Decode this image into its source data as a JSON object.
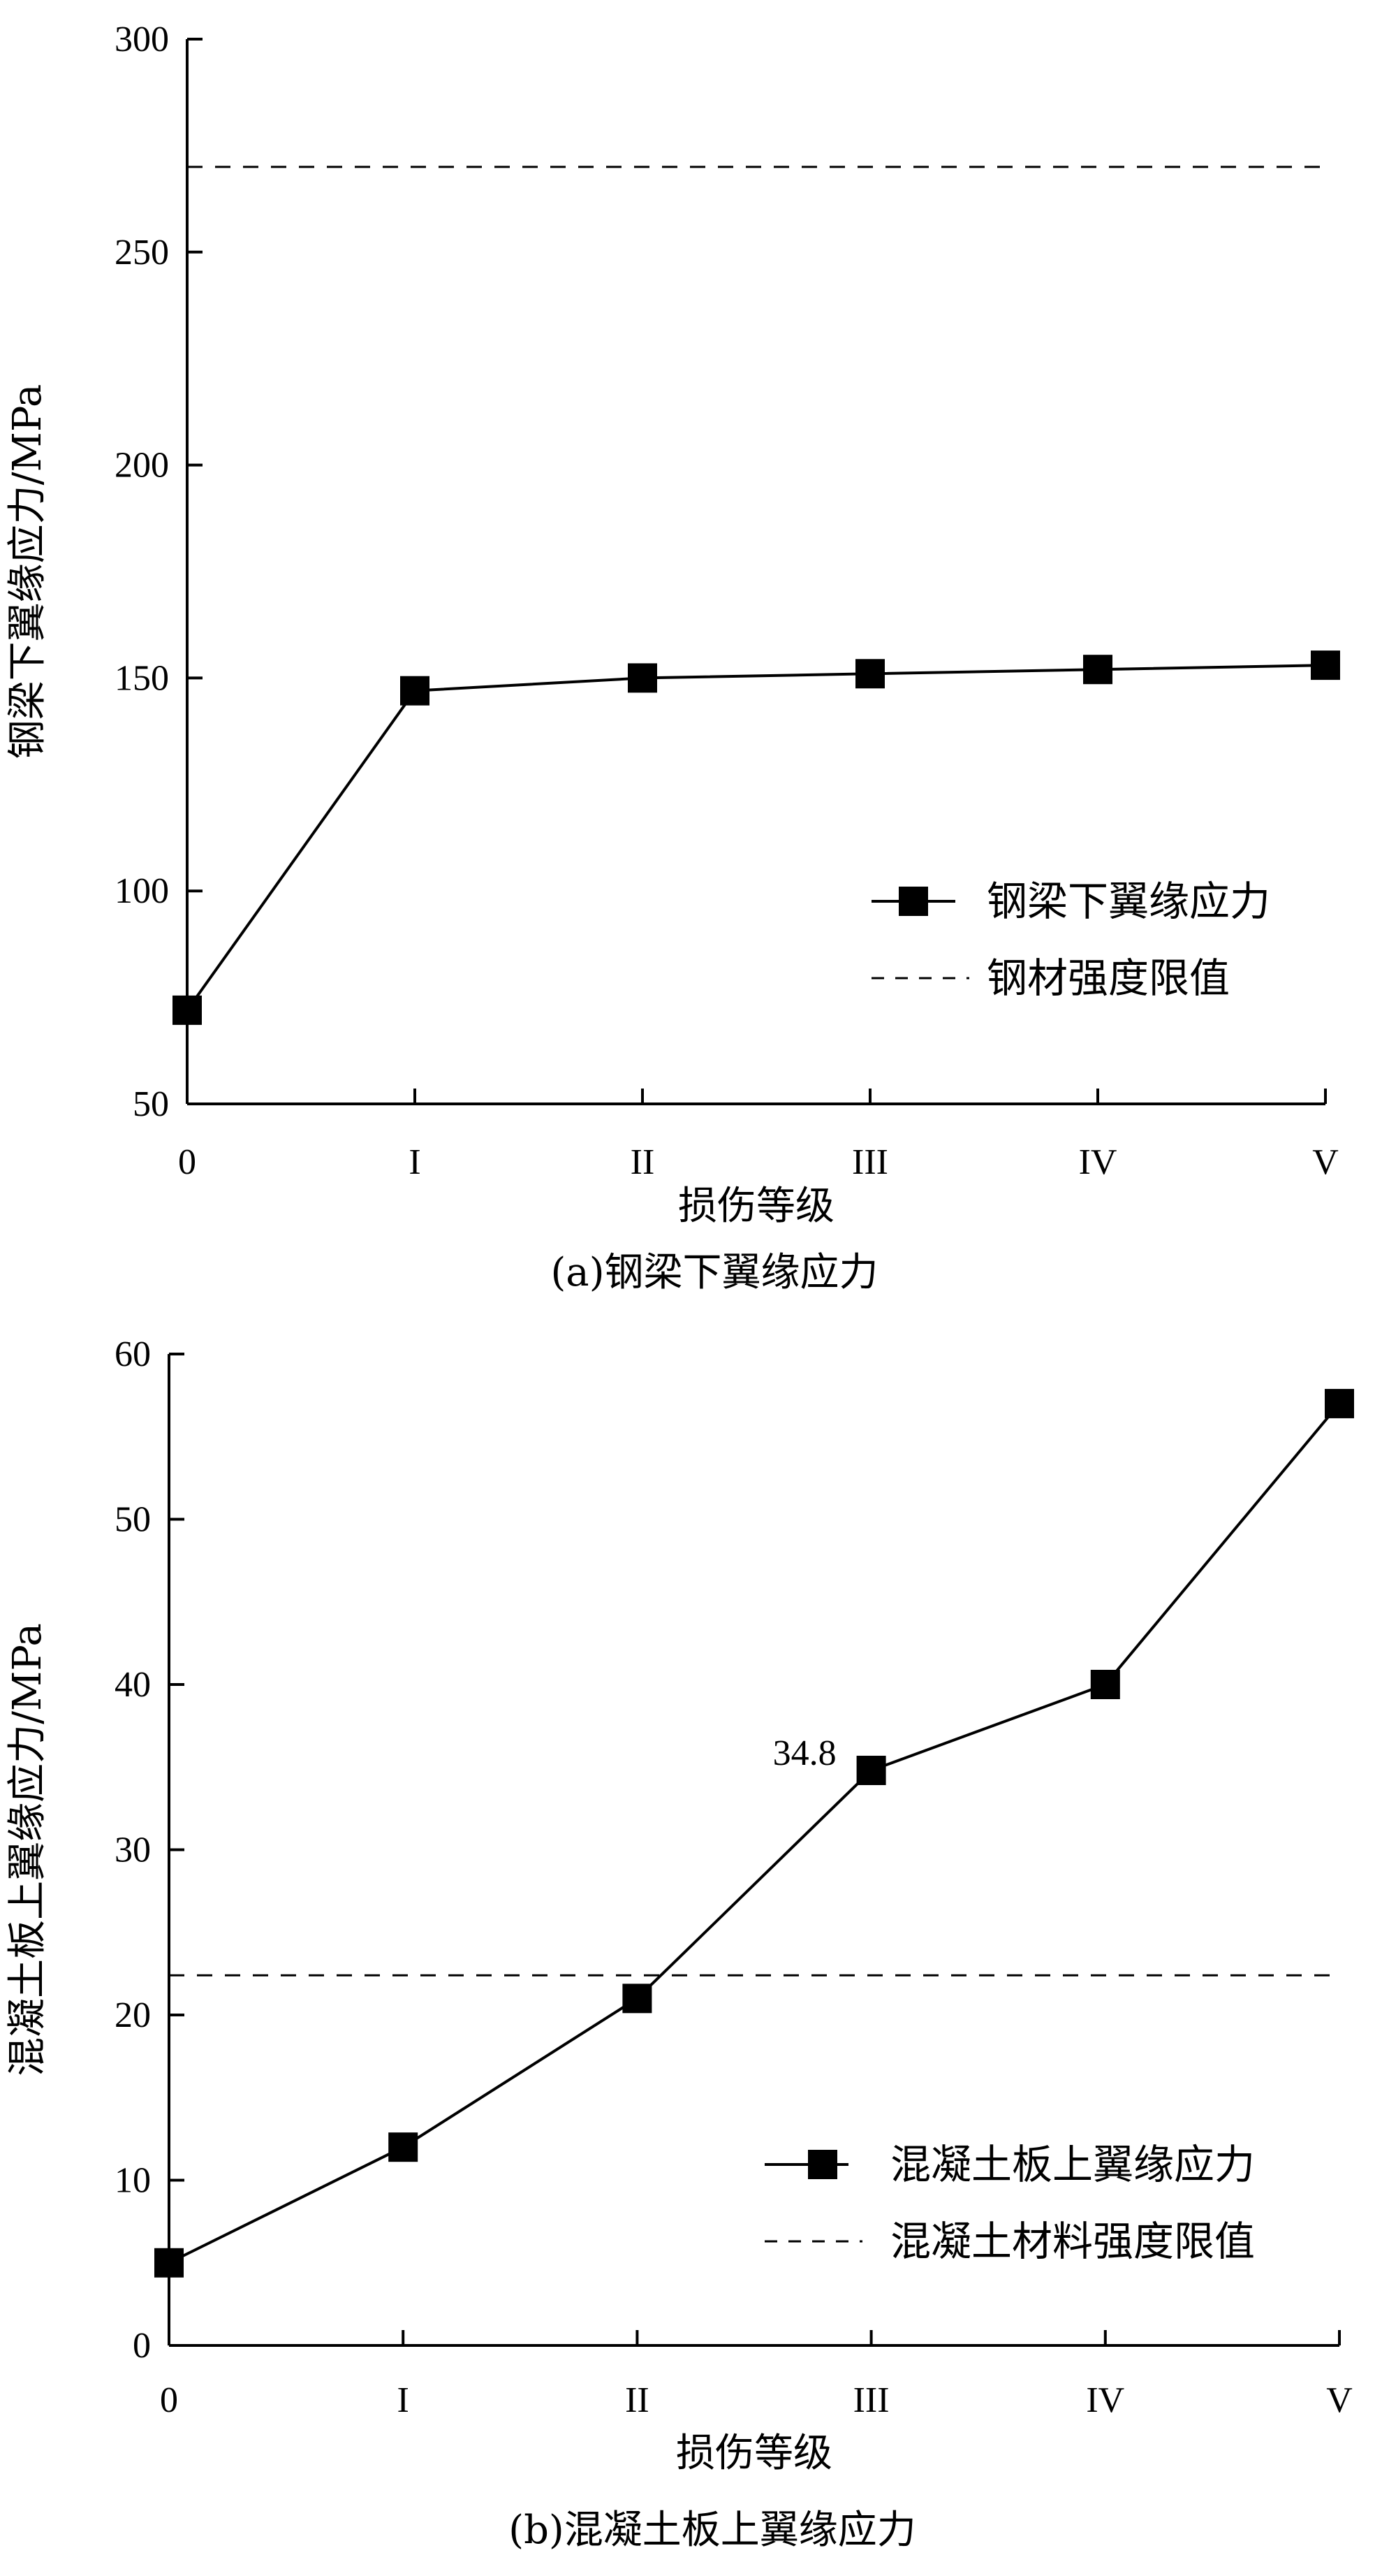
{
  "chart_data": [
    {
      "type": "line",
      "categories": [
        "0",
        "I",
        "II",
        "III",
        "IV",
        "V"
      ],
      "xlabel": "损伤等级",
      "ylabel": "钢梁下翼缘应力/MPa",
      "caption": "(a)钢梁下翼缘应力",
      "ylim": [
        50,
        300
      ],
      "yticks": [
        50,
        100,
        150,
        200,
        250,
        300
      ],
      "series": [
        {
          "name": "钢梁下翼缘应力",
          "style": "solid-square",
          "values": [
            72,
            147,
            150,
            151,
            152,
            153
          ]
        }
      ],
      "reference_lines": [
        {
          "name": "钢材强度限值",
          "style": "dashed",
          "value": 270
        }
      ],
      "legend_position": "lower-right",
      "grid": false,
      "annotations": []
    },
    {
      "type": "line",
      "categories": [
        "0",
        "I",
        "II",
        "III",
        "IV",
        "V"
      ],
      "xlabel": "损伤等级",
      "ylabel": "混凝土板上翼缘应力/MPa",
      "caption": "(b)混凝土板上翼缘应力",
      "ylim": [
        0,
        60
      ],
      "yticks": [
        0,
        10,
        20,
        30,
        40,
        50,
        60
      ],
      "series": [
        {
          "name": "混凝土板上翼缘应力",
          "style": "solid-square",
          "values": [
            5,
            12,
            21,
            34.8,
            40,
            57
          ]
        }
      ],
      "reference_lines": [
        {
          "name": "混凝土材料强度限值",
          "style": "dashed",
          "value": 22.4
        }
      ],
      "legend_position": "lower-right",
      "grid": false,
      "annotations": [
        {
          "category_index": 3,
          "text": "34.8"
        }
      ]
    }
  ]
}
